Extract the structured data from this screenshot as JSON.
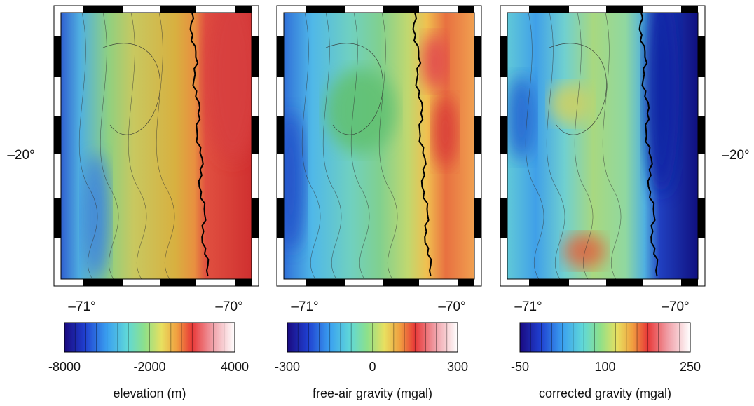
{
  "y_labels": {
    "left": "–20°",
    "right": "–20°"
  },
  "panels": [
    {
      "x_labels": [
        "–71°",
        "–70°"
      ],
      "colorbar": {
        "ticks": [
          "-8000",
          "-2000",
          "4000"
        ],
        "label": "elevation (m)"
      }
    },
    {
      "x_labels": [
        "–71°",
        "–70°"
      ],
      "colorbar": {
        "ticks": [
          "-300",
          "0",
          "300"
        ],
        "label": "free-air gravity (mgal)"
      }
    },
    {
      "x_labels": [
        "–71°",
        "–70°"
      ],
      "colorbar": {
        "ticks": [
          "-50",
          "100",
          "250"
        ],
        "label": "corrected gravity (mgal)"
      }
    }
  ]
}
